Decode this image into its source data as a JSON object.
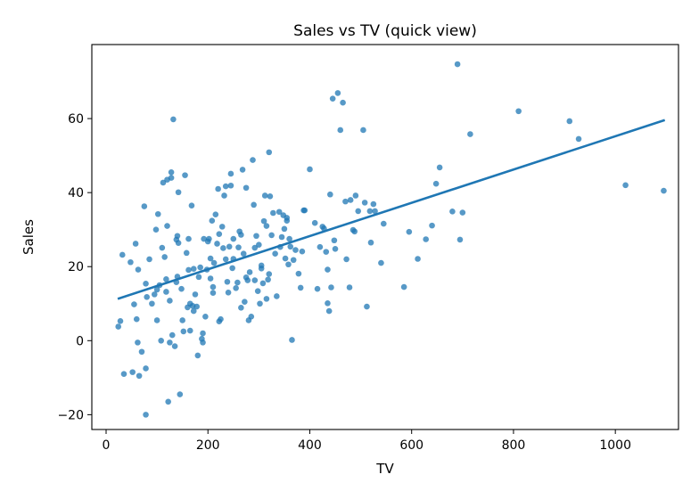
{
  "chart_data": {
    "type": "scatter",
    "title": "Sales vs TV (quick view)",
    "xlabel": "TV",
    "ylabel": "Sales",
    "xlim": [
      -28,
      1124
    ],
    "ylim": [
      -24,
      80
    ],
    "xticks": [
      0,
      200,
      400,
      600,
      800,
      1000
    ],
    "yticks": [
      -20,
      0,
      20,
      40,
      60
    ],
    "grid": false,
    "legend": "none",
    "point_color": "#1f77b4",
    "line_color": "#1f77b4",
    "series": [
      {
        "type": "scatter",
        "points": [
          [
            24,
            3.8
          ],
          [
            28,
            5.3
          ],
          [
            32,
            23.2
          ],
          [
            35,
            -9.0
          ],
          [
            48,
            21.2
          ],
          [
            52,
            -8.5
          ],
          [
            55,
            9.8
          ],
          [
            58,
            26.2
          ],
          [
            60,
            5.8
          ],
          [
            62,
            -0.5
          ],
          [
            63,
            19.2
          ],
          [
            65,
            -9.5
          ],
          [
            70,
            -3.0
          ],
          [
            75,
            36.3
          ],
          [
            78,
            -20.0
          ],
          [
            78,
            -7.5
          ],
          [
            78,
            15.4
          ],
          [
            80,
            11.8
          ],
          [
            85,
            22.0
          ],
          [
            90,
            10.0
          ],
          [
            95,
            12.5
          ],
          [
            98,
            30.0
          ],
          [
            100,
            13.8
          ],
          [
            100,
            5.5
          ],
          [
            102,
            34.2
          ],
          [
            105,
            15.0
          ],
          [
            108,
            0.0
          ],
          [
            110,
            25.1
          ],
          [
            112,
            42.7
          ],
          [
            115,
            22.6
          ],
          [
            118,
            16.6
          ],
          [
            118,
            13.2
          ],
          [
            120,
            43.5
          ],
          [
            120,
            31.0
          ],
          [
            122,
            -16.5
          ],
          [
            125,
            10.8
          ],
          [
            125,
            -0.5
          ],
          [
            128,
            45.5
          ],
          [
            128,
            44.0
          ],
          [
            130,
            1.5
          ],
          [
            132,
            59.8
          ],
          [
            135,
            -1.5
          ],
          [
            138,
            15.8
          ],
          [
            138,
            27.3
          ],
          [
            140,
            28.3
          ],
          [
            140,
            17.3
          ],
          [
            142,
            40.1
          ],
          [
            142,
            26.4
          ],
          [
            145,
            -14.5
          ],
          [
            148,
            14.0
          ],
          [
            150,
            5.5
          ],
          [
            152,
            2.5
          ],
          [
            155,
            44.7
          ],
          [
            158,
            23.7
          ],
          [
            160,
            9.0
          ],
          [
            162,
            27.5
          ],
          [
            162,
            19.1
          ],
          [
            165,
            2.7
          ],
          [
            165,
            10.0
          ],
          [
            168,
            36.5
          ],
          [
            170,
            9.4
          ],
          [
            172,
            19.4
          ],
          [
            172,
            8.0
          ],
          [
            175,
            12.5
          ],
          [
            178,
            9.2
          ],
          [
            180,
            -4.0
          ],
          [
            182,
            17.2
          ],
          [
            185,
            19.8
          ],
          [
            188,
            0.5
          ],
          [
            190,
            2.0
          ],
          [
            190,
            -0.5
          ],
          [
            192,
            27.5
          ],
          [
            195,
            6.5
          ],
          [
            198,
            19.2
          ],
          [
            200,
            26.8
          ],
          [
            202,
            27.5
          ],
          [
            205,
            22.2
          ],
          [
            205,
            16.8
          ],
          [
            208,
            32.4
          ],
          [
            210,
            14.5
          ],
          [
            210,
            12.9
          ],
          [
            212,
            21.0
          ],
          [
            215,
            34.1
          ],
          [
            218,
            26.2
          ],
          [
            220,
            41.0
          ],
          [
            222,
            5.2
          ],
          [
            222,
            28.8
          ],
          [
            225,
            5.8
          ],
          [
            228,
            30.8
          ],
          [
            230,
            25.0
          ],
          [
            232,
            39.2
          ],
          [
            235,
            22.0
          ],
          [
            235,
            41.7
          ],
          [
            238,
            15.9
          ],
          [
            240,
            13.0
          ],
          [
            242,
            25.4
          ],
          [
            245,
            45.1
          ],
          [
            245,
            41.9
          ],
          [
            248,
            19.6
          ],
          [
            250,
            22.1
          ],
          [
            250,
            27.5
          ],
          [
            255,
            14.2
          ],
          [
            258,
            15.7
          ],
          [
            260,
            25.2
          ],
          [
            262,
            29.5
          ],
          [
            265,
            28.6
          ],
          [
            265,
            8.9
          ],
          [
            268,
            46.2
          ],
          [
            270,
            23.5
          ],
          [
            272,
            10.5
          ],
          [
            275,
            41.3
          ],
          [
            275,
            17.1
          ],
          [
            278,
            16.3
          ],
          [
            280,
            5.5
          ],
          [
            282,
            18.5
          ],
          [
            285,
            6.5
          ],
          [
            288,
            48.8
          ],
          [
            290,
            36.7
          ],
          [
            292,
            25.1
          ],
          [
            292,
            16.3
          ],
          [
            295,
            28.3
          ],
          [
            298,
            13.4
          ],
          [
            300,
            25.9
          ],
          [
            302,
            10.0
          ],
          [
            305,
            20.3
          ],
          [
            305,
            19.5
          ],
          [
            308,
            15.5
          ],
          [
            310,
            32.3
          ],
          [
            312,
            39.2
          ],
          [
            315,
            11.3
          ],
          [
            315,
            31.0
          ],
          [
            318,
            16.5
          ],
          [
            320,
            50.9
          ],
          [
            320,
            18.0
          ],
          [
            322,
            39.0
          ],
          [
            325,
            28.5
          ],
          [
            328,
            34.5
          ],
          [
            332,
            23.5
          ],
          [
            335,
            12.0
          ],
          [
            340,
            34.8
          ],
          [
            342,
            25.3
          ],
          [
            345,
            28.0
          ],
          [
            348,
            33.9
          ],
          [
            350,
            30.2
          ],
          [
            352,
            22.2
          ],
          [
            355,
            33.2
          ],
          [
            355,
            32.4
          ],
          [
            358,
            20.6
          ],
          [
            360,
            27.5
          ],
          [
            362,
            25.4
          ],
          [
            365,
            0.2
          ],
          [
            368,
            21.8
          ],
          [
            372,
            24.5
          ],
          [
            378,
            18.1
          ],
          [
            382,
            14.3
          ],
          [
            385,
            24.1
          ],
          [
            388,
            35.2
          ],
          [
            390,
            35.2
          ],
          [
            400,
            46.3
          ],
          [
            410,
            31.8
          ],
          [
            415,
            14.0
          ],
          [
            420,
            25.3
          ],
          [
            425,
            30.8
          ],
          [
            428,
            30.3
          ],
          [
            432,
            24.0
          ],
          [
            435,
            19.2
          ],
          [
            435,
            10.1
          ],
          [
            438,
            8.0
          ],
          [
            440,
            39.5
          ],
          [
            442,
            14.4
          ],
          [
            445,
            65.4
          ],
          [
            448,
            27.1
          ],
          [
            450,
            24.8
          ],
          [
            455,
            66.9
          ],
          [
            460,
            56.9
          ],
          [
            465,
            64.3
          ],
          [
            470,
            37.6
          ],
          [
            472,
            22.0
          ],
          [
            478,
            14.4
          ],
          [
            480,
            38.0
          ],
          [
            485,
            29.9
          ],
          [
            488,
            29.5
          ],
          [
            490,
            39.2
          ],
          [
            495,
            35.0
          ],
          [
            505,
            56.9
          ],
          [
            508,
            37.3
          ],
          [
            512,
            9.2
          ],
          [
            518,
            35.0
          ],
          [
            520,
            26.5
          ],
          [
            525,
            36.9
          ],
          [
            528,
            35.0
          ],
          [
            540,
            21.0
          ],
          [
            545,
            31.6
          ],
          [
            585,
            14.5
          ],
          [
            595,
            29.4
          ],
          [
            612,
            22.1
          ],
          [
            628,
            27.4
          ],
          [
            640,
            31.1
          ],
          [
            648,
            42.4
          ],
          [
            655,
            46.8
          ],
          [
            680,
            34.9
          ],
          [
            690,
            74.7
          ],
          [
            695,
            27.3
          ],
          [
            700,
            34.6
          ],
          [
            715,
            55.8
          ],
          [
            810,
            62.0
          ],
          [
            910,
            59.3
          ],
          [
            928,
            54.5
          ],
          [
            1020,
            42.0
          ],
          [
            1095,
            40.5
          ]
        ]
      },
      {
        "type": "line",
        "name": "",
        "x": [
          25,
          1095
        ],
        "y": [
          11.4,
          59.5
        ]
      }
    ]
  }
}
